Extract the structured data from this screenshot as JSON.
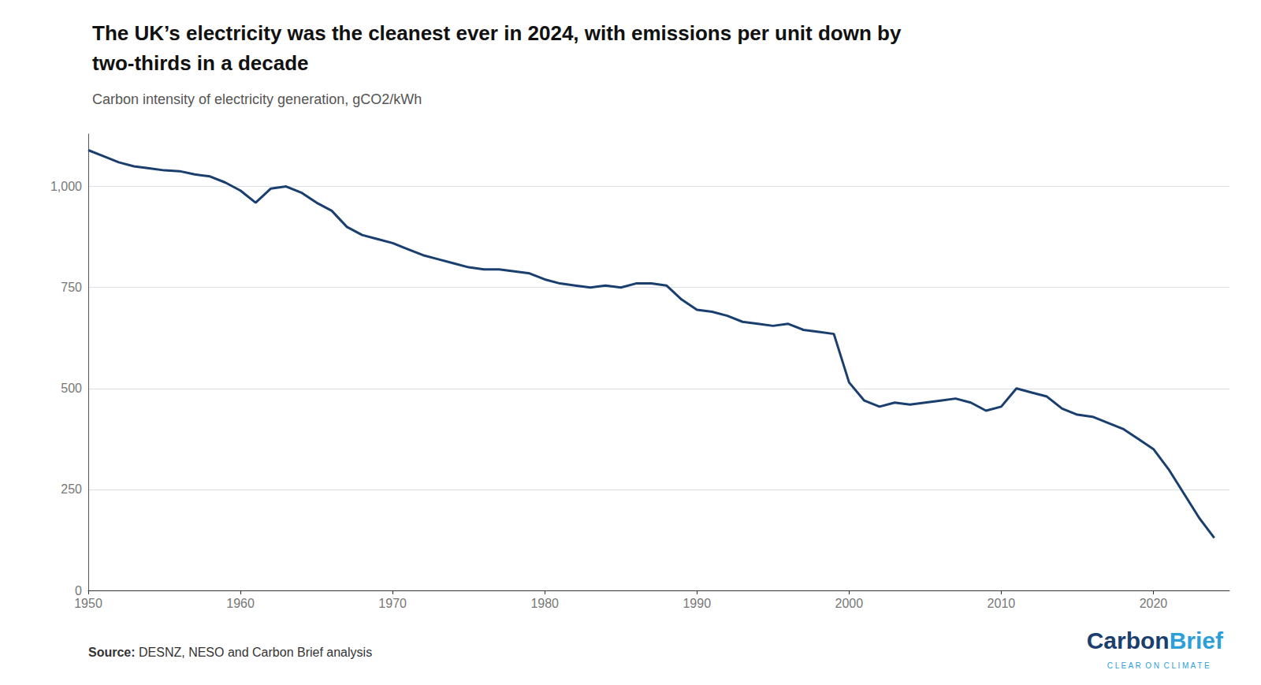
{
  "chart_data": {
    "type": "line",
    "title": [
      "The UK’s electricity was the cleanest ever in 2024, with emissions per unit down by",
      "two-thirds in a decade"
    ],
    "subtitle": "Carbon intensity of electricity generation, gCO2/kWh",
    "source": [
      "Source:",
      " DESNZ, NESO and Carbon Brief analysis"
    ],
    "annotations": [
      {
        "text": "Carbon",
        "color": "#1a3f6f"
      },
      {
        "text": "Brief",
        "color": "#2c9fd9"
      },
      {
        "text": "C L E A R  O N  C L I M A T E",
        "color": "#2c9fd9"
      }
    ],
    "x": [
      1950,
      1951,
      1952,
      1953,
      1954,
      1955,
      1956,
      1957,
      1958,
      1959,
      1960,
      1961,
      1962,
      1963,
      1964,
      1965,
      1966,
      1967,
      1968,
      1969,
      1970,
      1971,
      1972,
      1973,
      1974,
      1975,
      1976,
      1977,
      1978,
      1979,
      1980,
      1981,
      1982,
      1983,
      1984,
      1985,
      1986,
      1987,
      1988,
      1989,
      1990,
      1991,
      1992,
      1993,
      1994,
      1995,
      1996,
      1997,
      1998,
      1999,
      2000,
      2001,
      2002,
      2003,
      2004,
      2005,
      2006,
      2007,
      2008,
      2009,
      2010,
      2011,
      2012,
      2013,
      2014,
      2015,
      2016,
      2017,
      2018,
      2019,
      2020,
      2021,
      2022,
      2023,
      2024
    ],
    "values": [
      1090,
      1075,
      1060,
      1050,
      1045,
      1040,
      1038,
      1030,
      1025,
      1010,
      990,
      960,
      995,
      1000,
      985,
      960,
      940,
      900,
      880,
      870,
      860,
      845,
      830,
      820,
      810,
      800,
      795,
      795,
      790,
      785,
      770,
      760,
      755,
      750,
      755,
      750,
      760,
      760,
      755,
      720,
      695,
      690,
      680,
      665,
      660,
      655,
      660,
      645,
      640,
      635,
      515,
      470,
      455,
      465,
      460,
      465,
      470,
      475,
      465,
      445,
      455,
      500,
      490,
      480,
      450,
      435,
      430,
      415,
      400,
      375,
      350,
      300,
      240,
      180,
      130
    ],
    "color": "#1a3f6f",
    "xlim": [
      1950,
      2025
    ],
    "ylim": [
      0,
      1130
    ],
    "xticks": [
      1950,
      1960,
      1970,
      1980,
      1990,
      2000,
      2010,
      2020
    ],
    "yticks": [
      0,
      250,
      500,
      750,
      {
        "value": 1000,
        "label": "1,000"
      }
    ],
    "grid": true
  }
}
